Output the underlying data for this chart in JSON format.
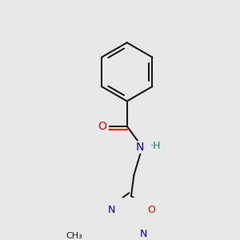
{
  "background_color": "#e8e8e8",
  "bond_color": "#1a1a1a",
  "bond_width": 1.5,
  "atom_colors": {
    "O": "#ff0000",
    "N": "#0000cc",
    "N_amide": "#0000cc",
    "H": "#008080",
    "C": "#1a1a1a"
  },
  "font_size_atom": 10,
  "font_size_small": 9
}
